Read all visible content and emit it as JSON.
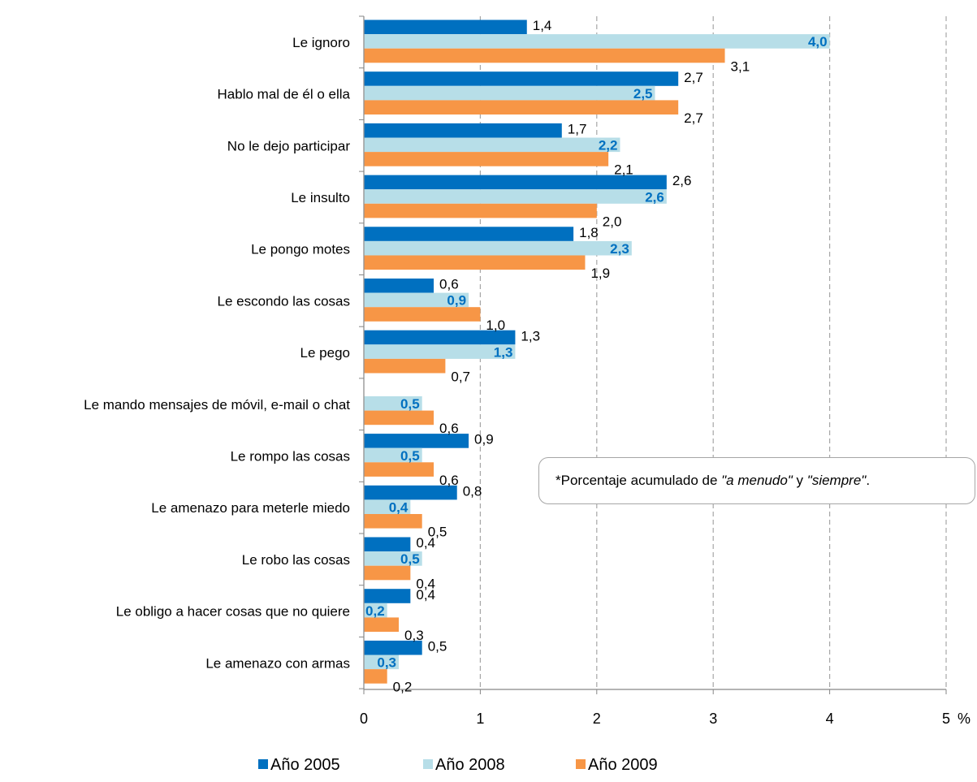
{
  "chart_data": {
    "type": "bar",
    "orientation": "horizontal",
    "categories": [
      "Le ignoro",
      "Hablo mal de él o ella",
      "No le dejo participar",
      "Le insulto",
      "Le pongo motes",
      "Le escondo las cosas",
      "Le pego",
      "Le mando mensajes de móvil, e-mail o chat",
      "Le rompo las cosas",
      "Le amenazo para meterle miedo",
      "Le robo las cosas",
      "Le obligo a hacer cosas que no quiere",
      "Le amenazo con armas"
    ],
    "series": [
      {
        "name": "Año 2005",
        "color": "#0070c0",
        "values": [
          1.4,
          2.7,
          1.7,
          2.6,
          1.8,
          0.6,
          1.3,
          null,
          0.9,
          0.8,
          0.4,
          0.4,
          0.5
        ],
        "labels": [
          "1,4",
          "2,7",
          "1,7",
          "2,6",
          "1,8",
          "0,6",
          "1,3",
          "",
          "0,9",
          "0,8",
          "0,4",
          "0,4",
          "0,5"
        ]
      },
      {
        "name": "Año 2008",
        "color": "#b7dee8",
        "label_color": "#0070c0",
        "label_bold": true,
        "values": [
          4.0,
          2.5,
          2.2,
          2.6,
          2.3,
          0.9,
          1.3,
          0.5,
          0.5,
          0.4,
          0.5,
          0.2,
          0.3
        ],
        "labels": [
          "4,0",
          "2,5",
          "2,2",
          "2,6",
          "2,3",
          "0,9",
          "1,3",
          "0,5",
          "0,5",
          "0,4",
          "0,5",
          "0,2",
          "0,3"
        ]
      },
      {
        "name": "Año 2009",
        "color": "#f79646",
        "values": [
          3.1,
          2.7,
          2.1,
          2.0,
          1.9,
          1.0,
          0.7,
          0.6,
          0.6,
          0.5,
          0.4,
          0.3,
          0.2
        ],
        "labels": [
          "3,1",
          "2,7",
          "2,1",
          "2,0",
          "1,9",
          "1,0",
          "0,7",
          "0,6",
          "0,6",
          "0,5",
          "0,4",
          "0,3",
          "0,2"
        ]
      }
    ],
    "xlim": [
      0,
      5
    ],
    "xticks": [
      "0",
      "1",
      "2",
      "3",
      "4",
      "5"
    ],
    "x_unit": "%",
    "grid": "vertical dashed",
    "legend": "bottom"
  },
  "note": {
    "prefix": "*Porcentaje acumulado de ",
    "term1": "\"a menudo\"",
    "joiner": " y ",
    "term2": "\"siempre\"",
    "suffix": "."
  }
}
